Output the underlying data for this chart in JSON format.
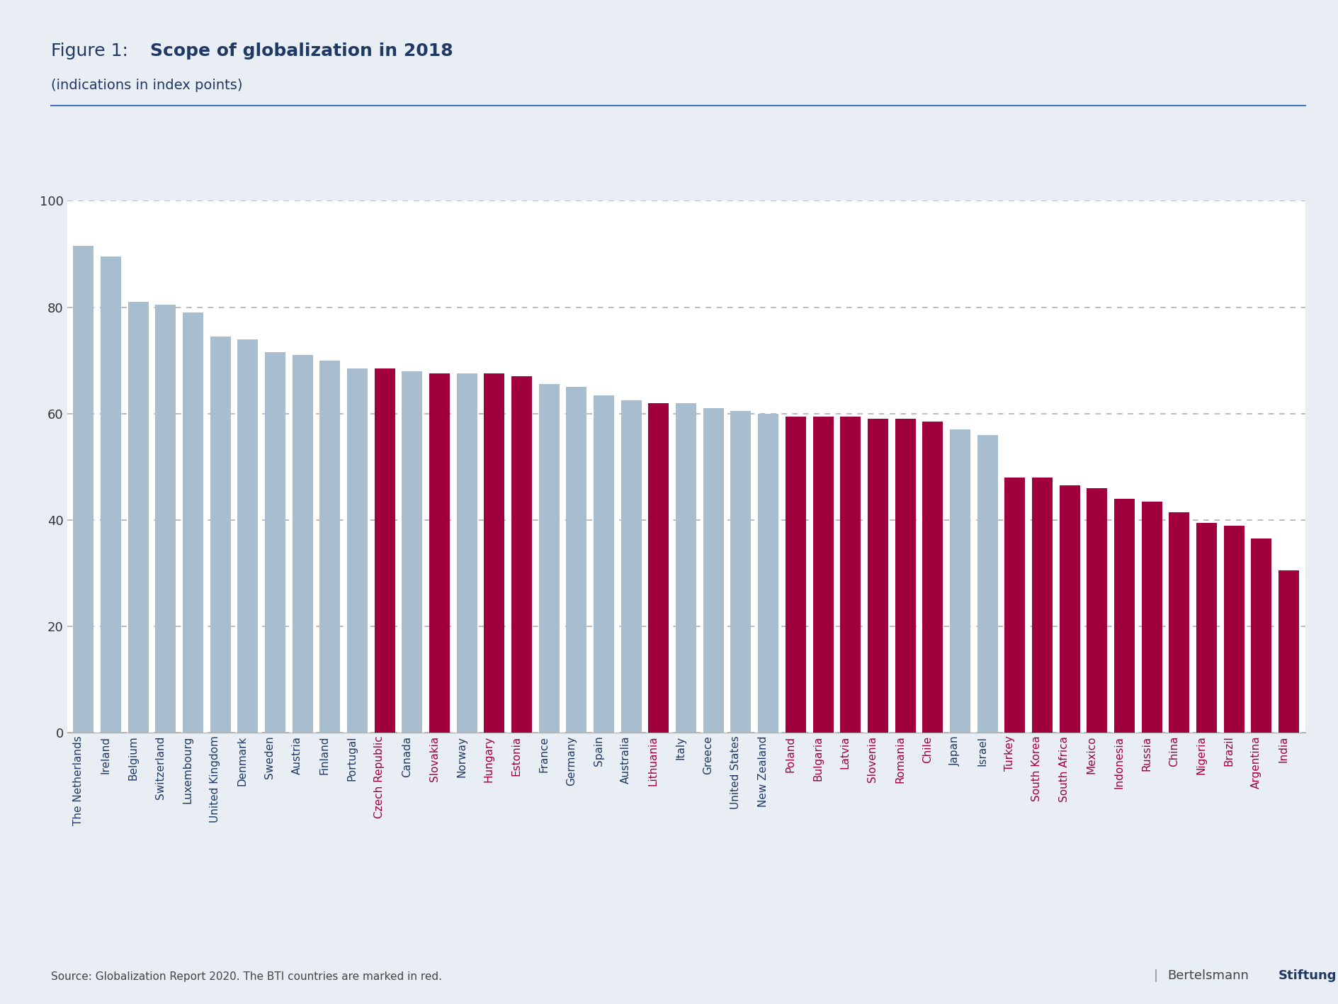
{
  "title_prefix": "Figure 1: ",
  "title_bold": "Scope of globalization in 2018",
  "subtitle": "(indications in index points)",
  "outer_bg_color": "#e8eef4",
  "plot_bg_color": "#ffffff",
  "bar_color_blue": "#a8bece",
  "bar_color_red": "#a0003c",
  "source_text": "Source: Globalization Report 2020. The BTI countries are marked in red.",
  "countries": [
    "The Netherlands",
    "Ireland",
    "Belgium",
    "Switzerland",
    "Luxembourg",
    "United Kingdom",
    "Denmark",
    "Sweden",
    "Austria",
    "Finland",
    "Portugal",
    "Czech Republic",
    "Canada",
    "Slovakia",
    "Norway",
    "Hungary",
    "Estonia",
    "France",
    "Germany",
    "Spain",
    "Australia",
    "Lithuania",
    "Italy",
    "Greece",
    "United States",
    "New Zealand",
    "Poland",
    "Bulgaria",
    "Latvia",
    "Slovenia",
    "Romania",
    "Chile",
    "Japan",
    "Israel",
    "Turkey",
    "South Korea",
    "South Africa",
    "Mexico",
    "Indonesia",
    "Russia",
    "China",
    "Nigeria",
    "Brazil",
    "Argentina",
    "India"
  ],
  "values": [
    91.5,
    89.5,
    81.0,
    80.5,
    79.0,
    74.5,
    74.0,
    71.5,
    71.0,
    70.0,
    68.5,
    68.5,
    68.0,
    67.5,
    67.5,
    67.5,
    67.0,
    65.5,
    65.0,
    63.5,
    62.5,
    62.0,
    62.0,
    61.0,
    60.5,
    60.0,
    59.5,
    59.5,
    59.5,
    59.0,
    59.0,
    58.5,
    57.0,
    56.0,
    48.0,
    48.0,
    46.5,
    46.0,
    44.0,
    43.5,
    41.5,
    39.5,
    39.0,
    36.5,
    30.5
  ],
  "is_red": [
    false,
    false,
    false,
    false,
    false,
    false,
    false,
    false,
    false,
    false,
    false,
    true,
    false,
    true,
    false,
    true,
    true,
    false,
    false,
    false,
    false,
    true,
    false,
    false,
    false,
    false,
    true,
    true,
    true,
    true,
    true,
    true,
    false,
    false,
    true,
    true,
    true,
    true,
    true,
    true,
    true,
    true,
    true,
    true,
    true
  ],
  "ylim": [
    0,
    100
  ],
  "yticks": [
    0,
    20,
    40,
    60,
    80,
    100
  ],
  "title_color": "#1f3864",
  "subtitle_color": "#1f3864",
  "separator_color": "#4472c4",
  "grid_color": "#555555",
  "tick_label_color_default": "#1f3864",
  "yticklabel_color": "#333333",
  "source_color": "#444444",
  "branding_normal_color": "#444444",
  "branding_bold_color": "#1f3864"
}
